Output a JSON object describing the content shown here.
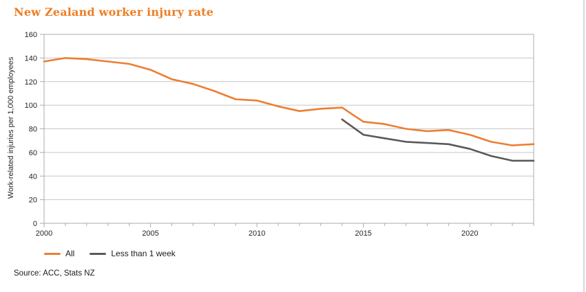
{
  "page": {
    "title": "New Zealand worker injury rate",
    "source": "Source: ACC, Stats NZ"
  },
  "colors": {
    "title": "#EE7D22",
    "text": "#23252B",
    "grid": "#C6C6C6",
    "axis_border": "#ABABAB",
    "all_series": "#ED7D31",
    "less_than_week_series": "#595959"
  },
  "chart_data": {
    "type": "line",
    "title": "New Zealand worker injury rate",
    "xlabel": "",
    "ylabel": "Work-related injuries per 1,000 employees",
    "ylim": [
      0,
      160
    ],
    "ytick_interval": 20,
    "ytick_labels": [
      "0",
      "20",
      "40",
      "60",
      "80",
      "100",
      "120",
      "140",
      "160"
    ],
    "xlim": [
      2000,
      2023
    ],
    "xtick_interval": 1,
    "xticks_labeled": [
      2000,
      2005,
      2010,
      2015,
      2020
    ],
    "grid": "horizontal",
    "legend_position": "bottom-left",
    "series": [
      {
        "name": "All",
        "color": "#ED7D31",
        "x": [
          2000,
          2001,
          2002,
          2003,
          2004,
          2005,
          2006,
          2007,
          2008,
          2009,
          2010,
          2011,
          2012,
          2013,
          2014,
          2015,
          2016,
          2017,
          2018,
          2019,
          2020,
          2021,
          2022,
          2023
        ],
        "values": [
          137,
          140,
          139,
          137,
          135,
          130,
          122,
          118,
          112,
          105,
          104,
          99,
          95,
          97,
          98,
          86,
          84,
          80,
          78,
          79,
          75,
          69,
          66,
          67
        ]
      },
      {
        "name": "Less than 1 week",
        "color": "#595959",
        "x": [
          2014,
          2015,
          2016,
          2017,
          2018,
          2019,
          2020,
          2021,
          2022,
          2023
        ],
        "values": [
          88,
          75,
          72,
          69,
          68,
          67,
          63,
          57,
          53,
          53
        ]
      }
    ]
  }
}
